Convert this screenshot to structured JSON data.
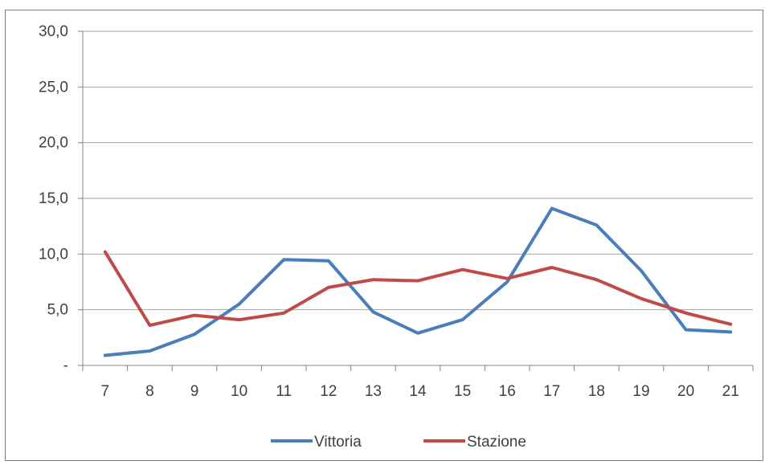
{
  "chart_data": {
    "type": "line",
    "title": "",
    "xlabel": "",
    "ylabel": "",
    "categories": [
      "7",
      "8",
      "9",
      "10",
      "11",
      "12",
      "13",
      "14",
      "15",
      "16",
      "17",
      "18",
      "19",
      "20",
      "21"
    ],
    "ylim": [
      0,
      30
    ],
    "y_ticks": [
      0,
      5,
      10,
      15,
      20,
      25,
      30
    ],
    "y_tick_labels": [
      "-",
      "5,0",
      "10,0",
      "15,0",
      "20,0",
      "25,0",
      "30,0"
    ],
    "grid": true,
    "legend_position": "bottom",
    "series": [
      {
        "name": "Vittoria",
        "color": "#4a7ebb",
        "values": [
          0.9,
          1.3,
          2.8,
          5.5,
          9.5,
          9.4,
          4.8,
          2.9,
          4.1,
          7.5,
          14.1,
          12.6,
          8.5,
          3.2,
          3.0
        ]
      },
      {
        "name": "Stazione",
        "color": "#be4b48",
        "values": [
          10.2,
          3.6,
          4.5,
          4.1,
          4.7,
          7.0,
          7.7,
          7.6,
          8.6,
          7.8,
          8.8,
          7.7,
          6.0,
          4.7,
          3.7
        ]
      }
    ]
  }
}
